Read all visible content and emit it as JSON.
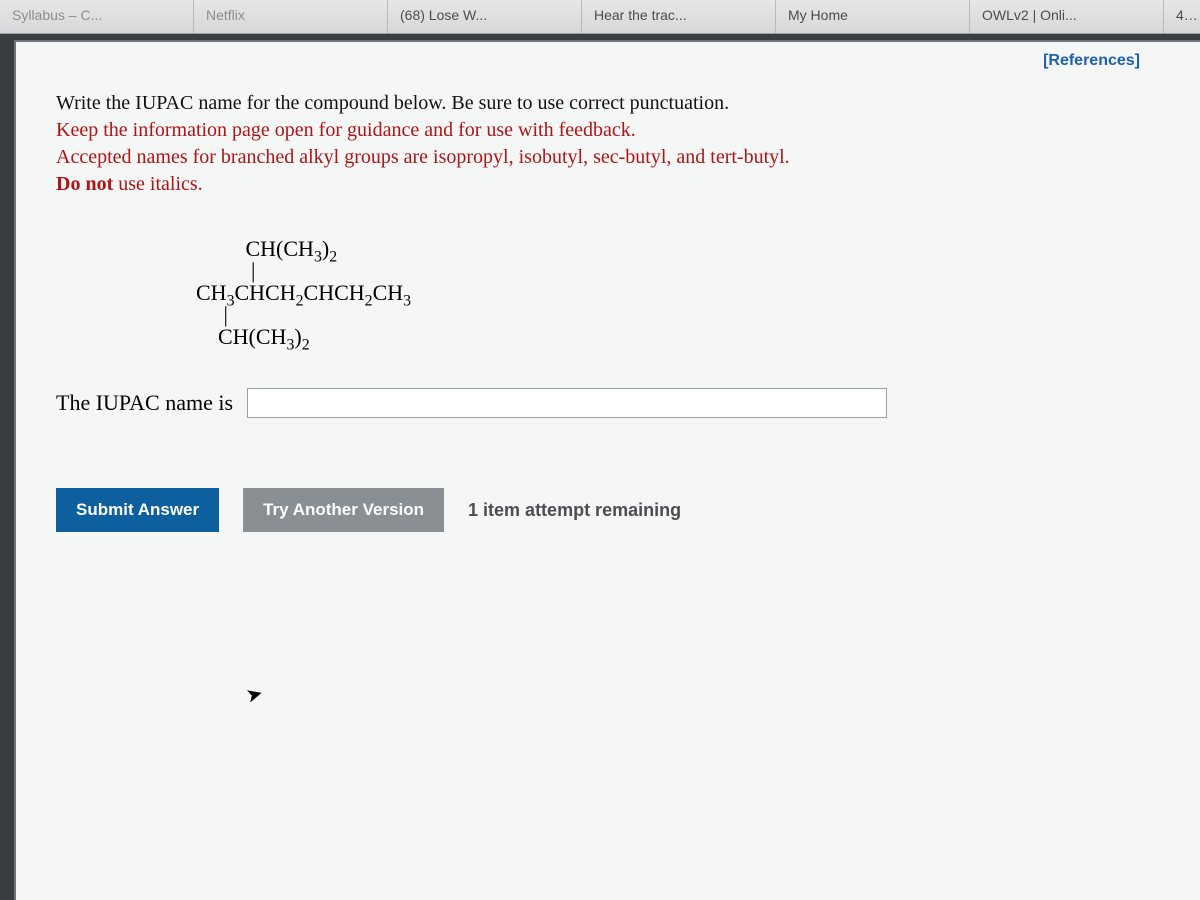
{
  "tabs": [
    {
      "label": "Syllabus – C...",
      "dim": true
    },
    {
      "label": "Netflix",
      "dim": true
    },
    {
      "label": "(68) Lose W...",
      "dim": false
    },
    {
      "label": "Hear the trac...",
      "dim": false
    },
    {
      "label": "My Home",
      "dim": false
    },
    {
      "label": "OWLv2 | Onli...",
      "dim": false
    }
  ],
  "tab_fragment": "4-",
  "references_label": "[References]",
  "prompt": {
    "line1": "Write the IUPAC name for the compound below. Be sure to use correct punctuation.",
    "line2": "Keep the information page open for guidance and for use with feedback.",
    "line3": "Accepted names for branched alkyl groups are isopropyl, isobutyl, sec-butyl, and tert-butyl.",
    "line4a": "Do not",
    "line4b": " use italics."
  },
  "structure": {
    "top_branch": "CH(CH3)2",
    "main_chain": "CH3CHCH2CHCH2CH3",
    "bottom_branch": "CH(CH3)2"
  },
  "answer_label": "The IUPAC name is",
  "answer_value": "",
  "buttons": {
    "submit": "Submit Answer",
    "try_another": "Try Another Version"
  },
  "attempts_text": "1 item attempt remaining",
  "colors": {
    "red_text": "#b01414",
    "primary_btn": "#0d5f9e",
    "secondary_btn": "#8a8f93",
    "link_blue": "#1f5fb0",
    "page_bg": "#f5f6f6",
    "tabbar_bg": "#d9dadc"
  }
}
